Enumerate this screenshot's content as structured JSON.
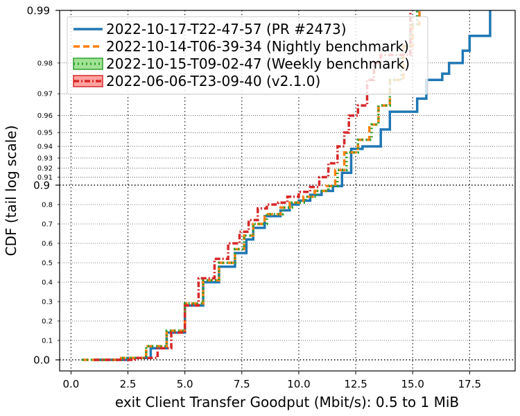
{
  "chart_data": {
    "type": "line",
    "xlabel": "exit Client Transfer Goodput (Mbit/s): 0.5 to 1 MiB",
    "ylabel": "CDF (tail log scale)",
    "xlim": [
      -0.5,
      19.5
    ],
    "x_ticks": [
      0.0,
      2.5,
      5.0,
      7.5,
      10.0,
      12.5,
      15.0,
      17.5
    ],
    "x_tick_labels": [
      "0.0",
      "2.5",
      "5.0",
      "7.5",
      "10.0",
      "12.5",
      "15.0",
      "17.5"
    ],
    "y_major_ticks": [
      0.0,
      0.9,
      0.99
    ],
    "y_major_labels": [
      "0.0",
      "0.9",
      "0.99"
    ],
    "y_minor_ticks": [
      0.1,
      0.2,
      0.3,
      0.4,
      0.5,
      0.6,
      0.7,
      0.8,
      0.91,
      0.92,
      0.93,
      0.94,
      0.95,
      0.96,
      0.97,
      0.98
    ],
    "y_minor_labels": [
      "0.1",
      "0.2",
      "0.3",
      "0.4",
      "0.5",
      "0.6",
      "0.7",
      "0.8",
      "0.91",
      "0.92",
      "0.93",
      "0.94",
      "0.95",
      "0.96",
      "0.97",
      "0.98"
    ],
    "grid": true,
    "legend_position": "top-left",
    "series": [
      {
        "name": "2022-10-17-T22-47-57 (PR #2473)",
        "color": "#1f77b4",
        "style": "solid",
        "points": [
          [
            1.0,
            0.0
          ],
          [
            2.5,
            0.01
          ],
          [
            3.5,
            0.06
          ],
          [
            4.2,
            0.14
          ],
          [
            5.0,
            0.28
          ],
          [
            5.8,
            0.4
          ],
          [
            6.5,
            0.48
          ],
          [
            7.2,
            0.55
          ],
          [
            7.7,
            0.62
          ],
          [
            8.0,
            0.68
          ],
          [
            8.5,
            0.74
          ],
          [
            9.2,
            0.77
          ],
          [
            9.6,
            0.8
          ],
          [
            10.0,
            0.82
          ],
          [
            10.5,
            0.85
          ],
          [
            11.0,
            0.87
          ],
          [
            11.5,
            0.895
          ],
          [
            11.9,
            0.915
          ],
          [
            12.3,
            0.938
          ],
          [
            12.8,
            0.94
          ],
          [
            13.3,
            0.94
          ],
          [
            13.6,
            0.952
          ],
          [
            14.0,
            0.962
          ],
          [
            15.0,
            0.962
          ],
          [
            15.2,
            0.968
          ],
          [
            15.6,
            0.975
          ],
          [
            16.3,
            0.977
          ],
          [
            16.6,
            0.98
          ],
          [
            17.2,
            0.983
          ],
          [
            17.5,
            0.986
          ],
          [
            18.4,
            0.986
          ],
          [
            18.4,
            0.99
          ]
        ]
      },
      {
        "name": "2022-10-14-T06-39-34 (Nightly benchmark)",
        "color": "#ff7f0e",
        "style": "dashed",
        "points": [
          [
            0.5,
            0.0
          ],
          [
            2.2,
            0.01
          ],
          [
            3.3,
            0.07
          ],
          [
            4.2,
            0.15
          ],
          [
            5.0,
            0.29
          ],
          [
            5.8,
            0.41
          ],
          [
            6.5,
            0.5
          ],
          [
            7.2,
            0.57
          ],
          [
            7.6,
            0.64
          ],
          [
            8.0,
            0.7
          ],
          [
            8.5,
            0.75
          ],
          [
            9.2,
            0.785
          ],
          [
            9.6,
            0.81
          ],
          [
            10.2,
            0.84
          ],
          [
            10.7,
            0.87
          ],
          [
            11.2,
            0.895
          ],
          [
            11.6,
            0.918
          ],
          [
            12.0,
            0.935
          ],
          [
            12.6,
            0.945
          ],
          [
            13.1,
            0.955
          ],
          [
            13.5,
            0.965
          ],
          [
            14.0,
            0.975
          ],
          [
            14.6,
            0.984
          ],
          [
            15.0,
            0.988
          ],
          [
            15.3,
            0.99
          ]
        ]
      },
      {
        "name": "2022-10-15-T09-02-47 (Weekly benchmark)",
        "color": "#2ca02c",
        "style": "dotted",
        "points": [
          [
            0.5,
            0.0
          ],
          [
            2.2,
            0.01
          ],
          [
            3.3,
            0.07
          ],
          [
            4.2,
            0.15
          ],
          [
            5.0,
            0.29
          ],
          [
            5.8,
            0.41
          ],
          [
            6.5,
            0.5
          ],
          [
            7.2,
            0.57
          ],
          [
            7.6,
            0.64
          ],
          [
            8.0,
            0.7
          ],
          [
            8.6,
            0.75
          ],
          [
            9.3,
            0.785
          ],
          [
            9.7,
            0.81
          ],
          [
            10.3,
            0.84
          ],
          [
            10.8,
            0.87
          ],
          [
            11.3,
            0.895
          ],
          [
            11.7,
            0.918
          ],
          [
            12.1,
            0.935
          ],
          [
            12.6,
            0.945
          ],
          [
            13.2,
            0.955
          ],
          [
            13.5,
            0.965
          ],
          [
            14.0,
            0.975
          ],
          [
            14.5,
            0.984
          ],
          [
            14.9,
            0.988
          ],
          [
            15.2,
            0.99
          ]
        ]
      },
      {
        "name": "2022-06-06-T23-09-40 (v2.1.0)",
        "color": "#d62728",
        "style": "dashdot",
        "points": [
          [
            1.0,
            0.0
          ],
          [
            2.8,
            0.01
          ],
          [
            3.8,
            0.06
          ],
          [
            4.4,
            0.14
          ],
          [
            5.0,
            0.28
          ],
          [
            5.6,
            0.42
          ],
          [
            6.3,
            0.52
          ],
          [
            6.9,
            0.6
          ],
          [
            7.4,
            0.66
          ],
          [
            7.8,
            0.72
          ],
          [
            8.2,
            0.78
          ],
          [
            8.6,
            0.8
          ],
          [
            9.1,
            0.81
          ],
          [
            9.5,
            0.84
          ],
          [
            10.0,
            0.865
          ],
          [
            10.5,
            0.89
          ],
          [
            10.9,
            0.91
          ],
          [
            11.3,
            0.925
          ],
          [
            11.7,
            0.94
          ],
          [
            12.0,
            0.95
          ],
          [
            12.2,
            0.96
          ],
          [
            12.6,
            0.965
          ],
          [
            13.0,
            0.975
          ],
          [
            13.3,
            0.98
          ],
          [
            13.6,
            0.982
          ],
          [
            14.8,
            0.982
          ],
          [
            14.9,
            0.99
          ]
        ]
      }
    ]
  }
}
